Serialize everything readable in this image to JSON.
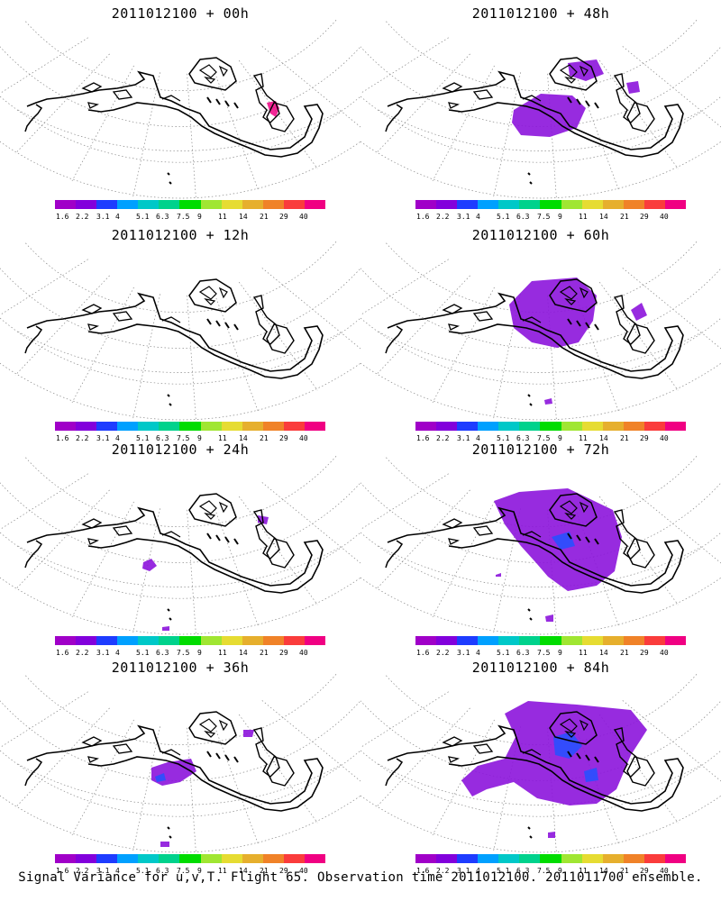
{
  "panels": [
    {
      "title": "2011012100 + 00h",
      "lead": "00h"
    },
    {
      "title": "2011012100 + 48h",
      "lead": "48h"
    },
    {
      "title": "2011012100 + 12h",
      "lead": "12h"
    },
    {
      "title": "2011012100 + 60h",
      "lead": "60h"
    },
    {
      "title": "2011012100 + 24h",
      "lead": "24h"
    },
    {
      "title": "2011012100 + 72h",
      "lead": "72h"
    },
    {
      "title": "2011012100 + 36h",
      "lead": "36h"
    },
    {
      "title": "2011012100 + 84h",
      "lead": "84h"
    }
  ],
  "colorbar": {
    "labels": [
      "1.6",
      "2.2",
      "3.1",
      "4",
      "5.1",
      "6.3",
      "7.5",
      "9",
      "11",
      "14",
      "21",
      "29",
      "40"
    ],
    "colors": [
      "#a000c8",
      "#8200dc",
      "#1e3cff",
      "#00a0ff",
      "#00c8c8",
      "#00d28c",
      "#00dc00",
      "#a0e632",
      "#e6dc32",
      "#e6af2d",
      "#f08228",
      "#fa3c3c",
      "#f00082"
    ]
  },
  "footer": "Signal Variance for u,v,T. Flight 65. Observation time 2011012100. 2011011700 ensemble."
}
